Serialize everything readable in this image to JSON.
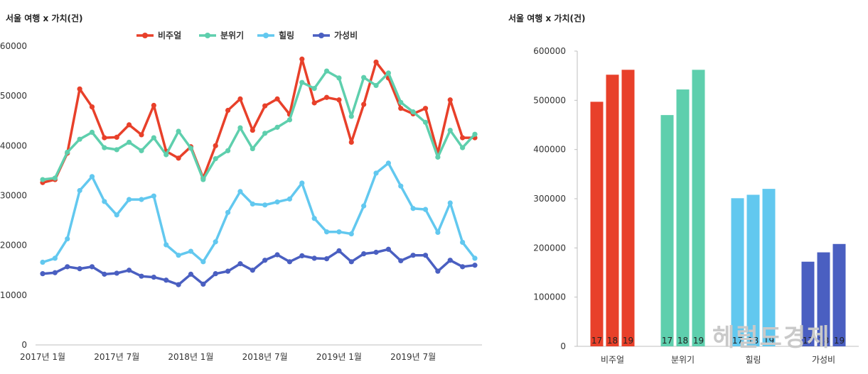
{
  "colors": {
    "비주얼": "#e8402a",
    "분위기": "#5ecfad",
    "힐링": "#62c8ef",
    "가성비": "#4a5fc1",
    "axis": "#bfbfbf",
    "watermark": "#c9c9c9"
  },
  "watermark": "헤럴드경제",
  "chart_data": [
    {
      "type": "line",
      "title": "서울 여행 x 가치(건)",
      "ylim": [
        0,
        60000
      ],
      "yticks": [
        0,
        10000,
        20000,
        30000,
        40000,
        50000,
        60000
      ],
      "xtick_labels": [
        {
          "i": 0,
          "label": "2017년 1월"
        },
        {
          "i": 6,
          "label": "2017년 7월"
        },
        {
          "i": 12,
          "label": "2018년 1월"
        },
        {
          "i": 18,
          "label": "2018년 7월"
        },
        {
          "i": 24,
          "label": "2019년 1월"
        },
        {
          "i": 30,
          "label": "2019년 7월"
        }
      ],
      "legend_position": "top-center",
      "grid": false,
      "series": [
        {
          "name": "비주얼",
          "values": [
            32600,
            33200,
            38500,
            51400,
            47800,
            41600,
            41700,
            44200,
            42200,
            48100,
            38900,
            37500,
            39800,
            33500,
            40000,
            47100,
            49400,
            43100,
            48000,
            49400,
            46300,
            57400,
            48600,
            49700,
            49200,
            40700,
            48300,
            56800,
            53600,
            47500,
            46400,
            47500,
            38500,
            49200,
            41600,
            41600
          ]
        },
        {
          "name": "분위기",
          "values": [
            33200,
            33500,
            38700,
            41300,
            42700,
            39600,
            39200,
            40700,
            39000,
            41600,
            38200,
            42900,
            39500,
            33200,
            37400,
            39000,
            43600,
            39400,
            42500,
            43700,
            45200,
            52700,
            51500,
            55000,
            53600,
            45900,
            53700,
            52100,
            54600,
            48700,
            46800,
            44700,
            37700,
            43100,
            39600,
            42300
          ]
        },
        {
          "name": "힐링",
          "values": [
            16600,
            17400,
            21300,
            31000,
            33800,
            28800,
            26100,
            29200,
            29200,
            29900,
            20100,
            18000,
            18800,
            16700,
            20700,
            26600,
            30800,
            28300,
            28100,
            28700,
            29300,
            32500,
            25400,
            22700,
            22700,
            22300,
            27900,
            34500,
            36500,
            31900,
            27400,
            27200,
            22600,
            28500,
            20600,
            17400
          ]
        },
        {
          "name": "가성비",
          "values": [
            14300,
            14500,
            15700,
            15300,
            15700,
            14200,
            14400,
            15000,
            13800,
            13600,
            13000,
            12100,
            14200,
            12200,
            14300,
            14800,
            16300,
            15000,
            17000,
            18100,
            16700,
            17900,
            17400,
            17300,
            18900,
            16700,
            18300,
            18600,
            19200,
            16900,
            18000,
            18000,
            14800,
            17000,
            15700,
            16000
          ]
        }
      ]
    },
    {
      "type": "bar",
      "title": "서울 여행 x 가치(건)",
      "categories": [
        "비주얼",
        "분위기",
        "힐링",
        "가성비"
      ],
      "ylim": [
        0,
        600000
      ],
      "yticks": [
        0,
        100000,
        200000,
        300000,
        400000,
        500000,
        600000
      ],
      "bar_labels": [
        "17",
        "18",
        "19"
      ],
      "grid": false,
      "values": [
        [
          497000,
          552000,
          562000
        ],
        [
          470000,
          522000,
          562000
        ],
        [
          301000,
          308000,
          320000
        ],
        [
          172000,
          191000,
          208000
        ]
      ]
    }
  ]
}
